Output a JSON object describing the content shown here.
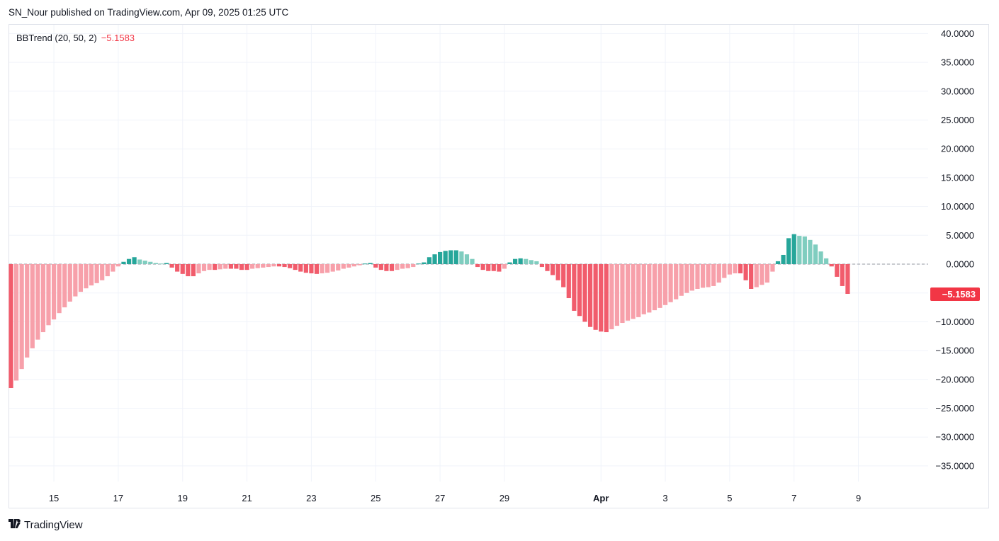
{
  "header": {
    "text": "SN_Nour published on TradingView.com, Apr 09, 2025 01:25 UTC"
  },
  "legend": {
    "name": "BBTrend (20, 50, 2)",
    "value": "−5.1583"
  },
  "footer": {
    "brand": "TradingView",
    "logo_icon": "tradingview-logo-icon"
  },
  "colors": {
    "pos_strong": "#26a69a",
    "pos_weak": "#7fcdbf",
    "neg_strong": "#f15c6c",
    "neg_weak": "#f7a0aa",
    "grid": "#f0f3fa",
    "label_bg": "#f23645"
  },
  "chart_data": {
    "type": "bar",
    "title": "BBTrend (20, 50, 2)",
    "ylim": [
      -40,
      42
    ],
    "yticks": [
      40,
      35,
      30,
      25,
      20,
      15,
      10,
      5,
      0,
      -5,
      -10,
      -15,
      -20,
      -25,
      -30,
      -35
    ],
    "ytick_labels": [
      "40.0000",
      "35.0000",
      "30.0000",
      "25.0000",
      "20.0000",
      "15.0000",
      "10.0000",
      "5.0000",
      "0.0000",
      "−5.0000",
      "−10.0000",
      "−15.0000",
      "−20.0000",
      "−25.0000",
      "−30.0000",
      "−35.0000"
    ],
    "x_ticks": [
      {
        "label": "15",
        "bar": 8
      },
      {
        "label": "17",
        "bar": 20
      },
      {
        "label": "19",
        "bar": 32
      },
      {
        "label": "21",
        "bar": 44
      },
      {
        "label": "23",
        "bar": 56
      },
      {
        "label": "25",
        "bar": 68
      },
      {
        "label": "27",
        "bar": 80
      },
      {
        "label": "29",
        "bar": 92
      },
      {
        "label": "Apr",
        "bar": 110,
        "bold": true
      },
      {
        "label": "3",
        "bar": 122
      },
      {
        "label": "5",
        "bar": 134
      },
      {
        "label": "7",
        "bar": 146
      },
      {
        "label": "9",
        "bar": 158
      }
    ],
    "current_value": -5.1583,
    "current_label": "−5.1583",
    "values": [
      -21.5,
      -20.2,
      -18.2,
      -16.2,
      -14.6,
      -13.1,
      -11.8,
      -10.6,
      -9.6,
      -8.5,
      -7.5,
      -6.5,
      -5.6,
      -4.8,
      -4.2,
      -3.7,
      -3.3,
      -2.8,
      -2.1,
      -1.3,
      -0.4,
      0.4,
      0.9,
      1.2,
      0.8,
      0.6,
      0.4,
      0.2,
      0.1,
      0.2,
      -0.6,
      -1.3,
      -1.7,
      -2.1,
      -2.1,
      -1.6,
      -1.2,
      -1.0,
      -1.0,
      -0.9,
      -0.8,
      -0.8,
      -0.8,
      -1.0,
      -1.0,
      -0.8,
      -0.7,
      -0.6,
      -0.5,
      -0.4,
      -0.4,
      -0.5,
      -0.7,
      -1.0,
      -1.3,
      -1.5,
      -1.6,
      -1.7,
      -1.6,
      -1.5,
      -1.3,
      -1.1,
      -0.8,
      -0.6,
      -0.4,
      -0.2,
      0.1,
      0.2,
      -0.6,
      -1.0,
      -1.2,
      -1.2,
      -1.0,
      -0.8,
      -0.7,
      -0.5,
      0.1,
      0.3,
      1.2,
      1.7,
      2.1,
      2.3,
      2.4,
      2.4,
      2.2,
      1.7,
      0.9,
      -0.5,
      -1.0,
      -1.2,
      -1.2,
      -1.3,
      -0.8,
      0.3,
      0.9,
      1.0,
      0.9,
      0.7,
      0.5,
      -0.5,
      -1.2,
      -1.9,
      -2.8,
      -4.0,
      -5.9,
      -8.1,
      -9.0,
      -10.0,
      -10.9,
      -11.4,
      -11.7,
      -11.8,
      -11.3,
      -10.7,
      -10.2,
      -9.8,
      -9.5,
      -9.2,
      -8.7,
      -8.4,
      -8.0,
      -7.6,
      -7.1,
      -6.6,
      -6.1,
      -5.5,
      -5.0,
      -4.6,
      -4.3,
      -4.1,
      -4.0,
      -3.8,
      -3.2,
      -2.4,
      -1.8,
      -1.6,
      -1.6,
      -2.8,
      -4.3,
      -4.0,
      -3.6,
      -3.2,
      -1.3,
      0.5,
      1.6,
      4.5,
      5.2,
      4.9,
      4.8,
      4.2,
      3.4,
      2.2,
      1.0,
      -0.4,
      -2.2,
      -3.8,
      -5.1583
    ]
  }
}
